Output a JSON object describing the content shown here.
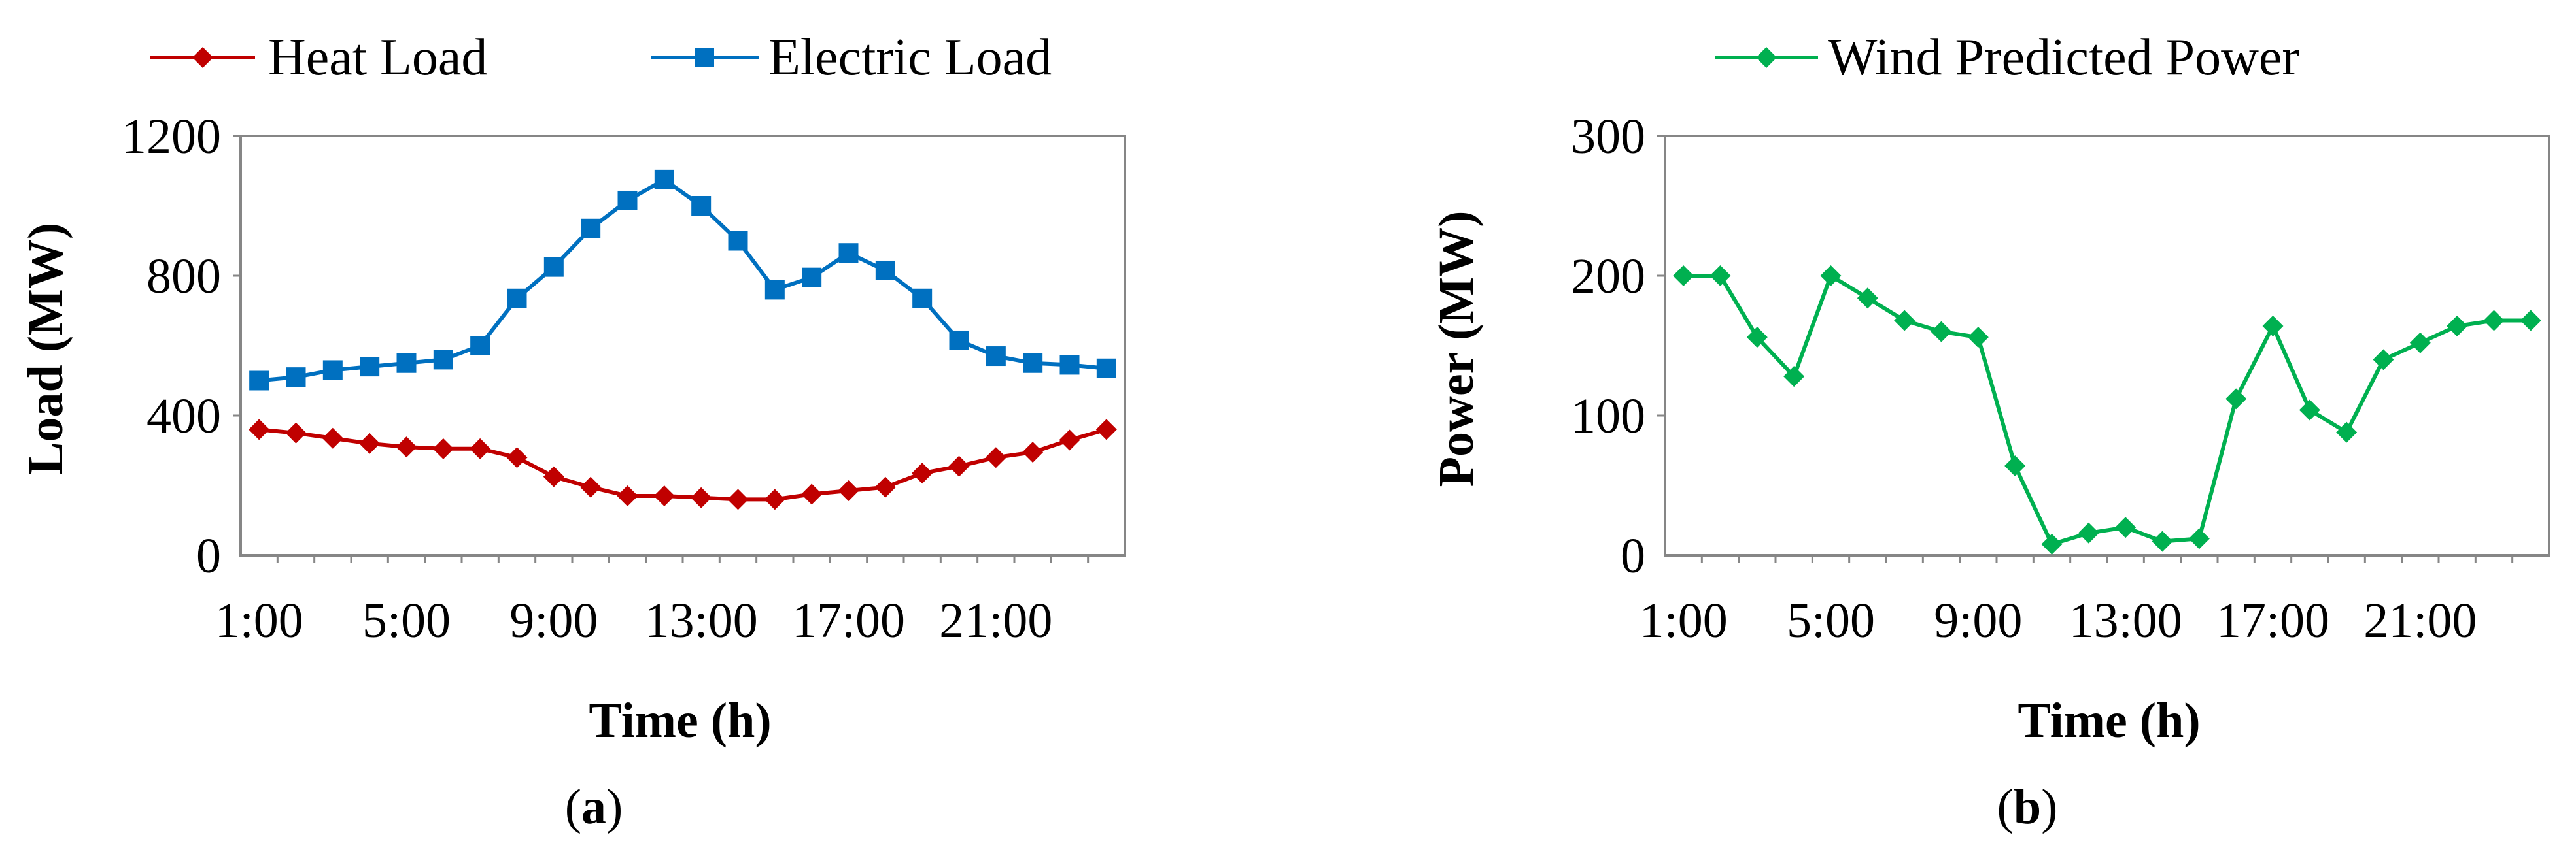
{
  "chart_data": [
    {
      "type": "line",
      "panel_label": "a",
      "x": [
        "1:00",
        "2:00",
        "3:00",
        "4:00",
        "5:00",
        "6:00",
        "7:00",
        "8:00",
        "9:00",
        "10:00",
        "11:00",
        "12:00",
        "13:00",
        "14:00",
        "15:00",
        "16:00",
        "17:00",
        "18:00",
        "19:00",
        "20:00",
        "21:00",
        "22:00",
        "23:00",
        "24:00"
      ],
      "x_tick_labels": [
        "1:00",
        "5:00",
        "9:00",
        "13:00",
        "17:00",
        "21:00"
      ],
      "xlabel": "Time (h)",
      "ylabel": "Load (MW)",
      "ylim": [
        0,
        1200
      ],
      "y_ticks": [
        0,
        400,
        800,
        1200
      ],
      "grid": false,
      "legend_position": "top",
      "series": [
        {
          "name": "Heat Load",
          "color": "#C00000",
          "marker": "diamond",
          "values": [
            360,
            350,
            335,
            320,
            310,
            305,
            305,
            280,
            225,
            195,
            170,
            170,
            165,
            160,
            160,
            175,
            185,
            195,
            235,
            255,
            280,
            295,
            330,
            360
          ]
        },
        {
          "name": "Electric Load",
          "color": "#0070C0",
          "marker": "square",
          "values": [
            500,
            510,
            530,
            540,
            550,
            560,
            600,
            735,
            825,
            935,
            1015,
            1075,
            1000,
            900,
            760,
            795,
            865,
            815,
            735,
            615,
            570,
            550,
            545,
            535
          ]
        }
      ]
    },
    {
      "type": "line",
      "panel_label": "b",
      "x": [
        "1:00",
        "2:00",
        "3:00",
        "4:00",
        "5:00",
        "6:00",
        "7:00",
        "8:00",
        "9:00",
        "10:00",
        "11:00",
        "12:00",
        "13:00",
        "14:00",
        "15:00",
        "16:00",
        "17:00",
        "18:00",
        "19:00",
        "20:00",
        "21:00",
        "22:00",
        "23:00",
        "24:00"
      ],
      "x_tick_labels": [
        "1:00",
        "5:00",
        "9:00",
        "13:00",
        "17:00",
        "21:00"
      ],
      "xlabel": "Time (h)",
      "ylabel": "Power (MW)",
      "ylim": [
        0,
        300
      ],
      "y_ticks": [
        0,
        100,
        200,
        300
      ],
      "grid": false,
      "legend_position": "top",
      "series": [
        {
          "name": "Wind Predicted Power",
          "color": "#00B050",
          "marker": "diamond",
          "values": [
            200,
            200,
            156,
            128,
            200,
            184,
            168,
            160,
            156,
            64,
            8,
            16,
            20,
            10,
            12,
            112,
            164,
            104,
            88,
            140,
            152,
            164,
            168,
            168
          ]
        }
      ]
    }
  ]
}
